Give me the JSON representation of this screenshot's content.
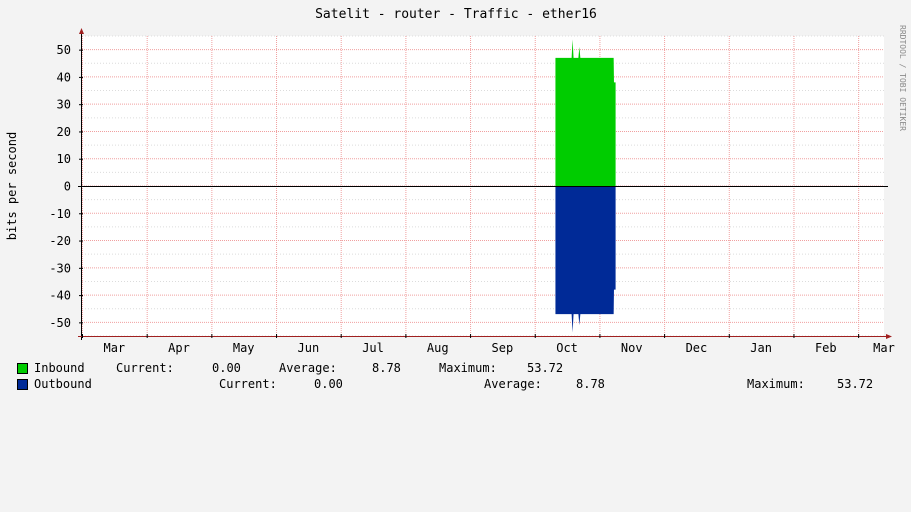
{
  "chart_data": {
    "type": "area",
    "title": "Satelit - router - Traffic - ether16",
    "ylabel": "bits per second",
    "xlabel": "",
    "watermark": "RRDTOOL / TOBI OETIKER",
    "ylim": [
      -55,
      55
    ],
    "yticks": [
      50,
      40,
      30,
      20,
      10,
      0,
      -10,
      -20,
      -30,
      -40,
      -50
    ],
    "ytick_labels": [
      "50",
      "40",
      "30",
      "20",
      "10",
      "0",
      "-10",
      "-20",
      "-30",
      "-40",
      "-50"
    ],
    "x_domain": [
      0,
      12.4
    ],
    "xticks": [
      {
        "label": "Mar",
        "x": 0.5
      },
      {
        "label": "Apr",
        "x": 1.5
      },
      {
        "label": "May",
        "x": 2.5
      },
      {
        "label": "Jun",
        "x": 3.5
      },
      {
        "label": "Jul",
        "x": 4.5
      },
      {
        "label": "Aug",
        "x": 5.5
      },
      {
        "label": "Sep",
        "x": 6.5
      },
      {
        "label": "Oct",
        "x": 7.5
      },
      {
        "label": "Nov",
        "x": 8.5
      },
      {
        "label": "Dec",
        "x": 9.5
      },
      {
        "label": "Jan",
        "x": 10.5
      },
      {
        "label": "Feb",
        "x": 11.5
      },
      {
        "label": "Mar",
        "x": 12.4
      }
    ],
    "grid": true,
    "series": [
      {
        "name": "Inbound",
        "color": "#00cc00",
        "points": [
          [
            7.32,
            0
          ],
          [
            7.32,
            47
          ],
          [
            7.57,
            47
          ],
          [
            7.585,
            53.72
          ],
          [
            7.6,
            47
          ],
          [
            7.65,
            47
          ],
          [
            7.675,
            47
          ],
          [
            7.69,
            51
          ],
          [
            7.705,
            47
          ],
          [
            8.22,
            47
          ],
          [
            8.225,
            38
          ],
          [
            8.25,
            38
          ],
          [
            8.25,
            0
          ]
        ]
      },
      {
        "name": "Outbound",
        "color": "#002a97",
        "points": [
          [
            7.32,
            0
          ],
          [
            7.32,
            -47
          ],
          [
            7.57,
            -47
          ],
          [
            7.585,
            -53.72
          ],
          [
            7.6,
            -47
          ],
          [
            7.675,
            -47
          ],
          [
            7.69,
            -51
          ],
          [
            7.705,
            -47
          ],
          [
            8.22,
            -47
          ],
          [
            8.225,
            -38
          ],
          [
            8.25,
            -38
          ],
          [
            8.25,
            0
          ]
        ]
      }
    ],
    "legend": [
      {
        "name": "Inbound",
        "color": "#00cc00",
        "current_label": "Current:",
        "current": "0.00",
        "average_label": "Average:",
        "average": "8.78",
        "maximum_label": "Maximum:",
        "maximum": "53.72"
      },
      {
        "name": "Outbound",
        "color": "#002a97",
        "current_label": "Current:",
        "current": "0.00",
        "average_label": "Average:",
        "average": "8.78",
        "maximum_label": "Maximum:",
        "maximum": "53.72"
      }
    ]
  }
}
